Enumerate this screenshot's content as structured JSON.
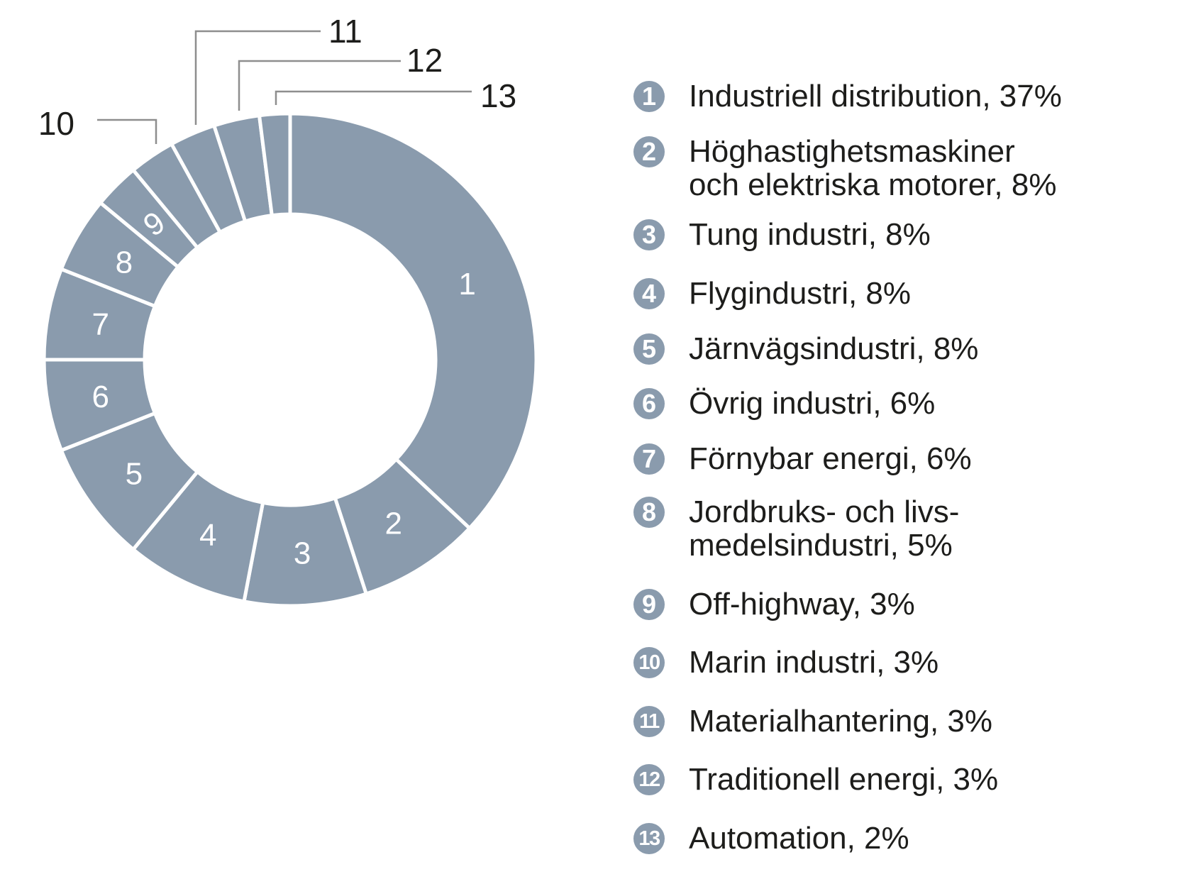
{
  "chart_data": {
    "type": "pie",
    "variant": "donut",
    "title": "",
    "unit": "%",
    "start_angle": "top",
    "direction": "clockwise",
    "segments": [
      {
        "number": "1",
        "label": "Industriell distribution",
        "value": 37,
        "pct_text": "37%",
        "legend_lines": [
          "Industriell distribution, 37%"
        ],
        "number_placement": "inside"
      },
      {
        "number": "2",
        "label": "Höghastighetsmaskiner och elektriska motorer",
        "value": 8,
        "pct_text": "8%",
        "legend_lines": [
          "Höghastighetsmaskiner",
          "och elektriska motorer, 8%"
        ],
        "number_placement": "inside"
      },
      {
        "number": "3",
        "label": "Tung industri",
        "value": 8,
        "pct_text": "8%",
        "legend_lines": [
          "Tung industri, 8%"
        ],
        "number_placement": "inside"
      },
      {
        "number": "4",
        "label": "Flygindustri",
        "value": 8,
        "pct_text": "8%",
        "legend_lines": [
          "Flygindustri, 8%"
        ],
        "number_placement": "inside"
      },
      {
        "number": "5",
        "label": "Järnvägsindustri",
        "value": 8,
        "pct_text": "8%",
        "legend_lines": [
          "Järnvägsindustri, 8%"
        ],
        "number_placement": "inside"
      },
      {
        "number": "6",
        "label": "Övrig industri",
        "value": 6,
        "pct_text": "6%",
        "legend_lines": [
          "Övrig industri, 6%"
        ],
        "number_placement": "inside"
      },
      {
        "number": "7",
        "label": "Förnybar energi",
        "value": 6,
        "pct_text": "6%",
        "legend_lines": [
          "Förnybar energi, 6%"
        ],
        "number_placement": "inside"
      },
      {
        "number": "8",
        "label": "Jordbruks- och livsmedelsindustri",
        "value": 5,
        "pct_text": "5%",
        "legend_lines": [
          "Jordbruks- och livs-",
          "medelsindustri, 5%"
        ],
        "number_placement": "inside"
      },
      {
        "number": "9",
        "label": "Off-highway",
        "value": 3,
        "pct_text": "3%",
        "legend_lines": [
          "Off-highway, 3%"
        ],
        "number_placement": "inside"
      },
      {
        "number": "10",
        "label": "Marin industri",
        "value": 3,
        "pct_text": "3%",
        "legend_lines": [
          "Marin industri, 3%"
        ],
        "number_placement": "callout"
      },
      {
        "number": "11",
        "label": "Materialhantering",
        "value": 3,
        "pct_text": "3%",
        "legend_lines": [
          "Materialhantering, 3%"
        ],
        "number_placement": "callout"
      },
      {
        "number": "12",
        "label": "Traditionell energi",
        "value": 3,
        "pct_text": "3%",
        "legend_lines": [
          "Traditionell energi, 3%"
        ],
        "number_placement": "callout"
      },
      {
        "number": "13",
        "label": "Automation",
        "value": 2,
        "pct_text": "2%",
        "legend_lines": [
          "Automation, 2%"
        ],
        "number_placement": "callout"
      }
    ],
    "colors": {
      "slice": "#8A9BAD",
      "divider": "#FFFFFF",
      "inside_number": "#FFFFFF",
      "callout_line": "#8E8E8E",
      "text": "#1D1D1B",
      "legend_badge": "#8A9BAD",
      "legend_badge_number": "#FFFFFF"
    },
    "legend_position": "right"
  }
}
